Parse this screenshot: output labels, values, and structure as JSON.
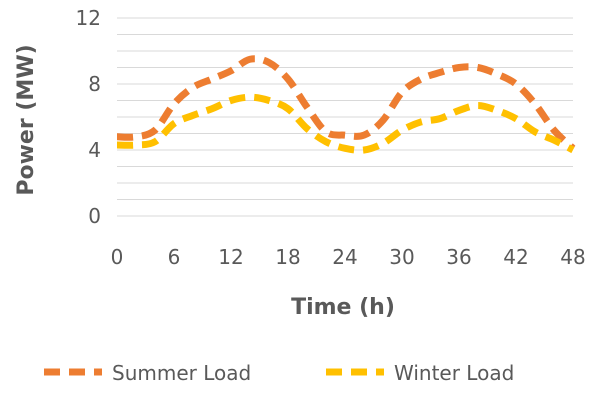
{
  "chart_data": {
    "type": "line",
    "title": "",
    "xlabel": "Time (h)",
    "ylabel": "Power (MW)",
    "xlim": [
      0,
      48
    ],
    "ylim": [
      0,
      12
    ],
    "x_ticks": [
      "0",
      "6",
      "12",
      "18",
      "24",
      "30",
      "36",
      "42",
      "48"
    ],
    "y_ticks": [
      "0",
      "4",
      "8",
      "12"
    ],
    "minor_gridlines": true,
    "legend_position": "bottom",
    "x": [
      0,
      2,
      4,
      6,
      8,
      10,
      12,
      14,
      16,
      18,
      20,
      22,
      24,
      26,
      28,
      30,
      32,
      34,
      36,
      38,
      40,
      42,
      44,
      46,
      48
    ],
    "series": [
      {
        "name": "Summer Load",
        "color": "#ED7D31",
        "values": [
          4.8,
          4.8,
          5.2,
          6.8,
          7.8,
          8.3,
          8.8,
          9.5,
          9.3,
          8.3,
          6.6,
          5.1,
          4.9,
          4.9,
          5.8,
          7.5,
          8.3,
          8.7,
          9.0,
          9.0,
          8.6,
          8.0,
          6.8,
          5.2,
          4.1
        ],
        "dash": true
      },
      {
        "name": "Winter Load",
        "color": "#FFC000",
        "values": [
          4.3,
          4.3,
          4.5,
          5.6,
          6.1,
          6.5,
          7.0,
          7.2,
          7.0,
          6.5,
          5.3,
          4.5,
          4.1,
          4.0,
          4.4,
          5.2,
          5.7,
          5.9,
          6.4,
          6.7,
          6.4,
          5.9,
          5.1,
          4.6,
          4.0
        ],
        "dash": true
      }
    ]
  }
}
